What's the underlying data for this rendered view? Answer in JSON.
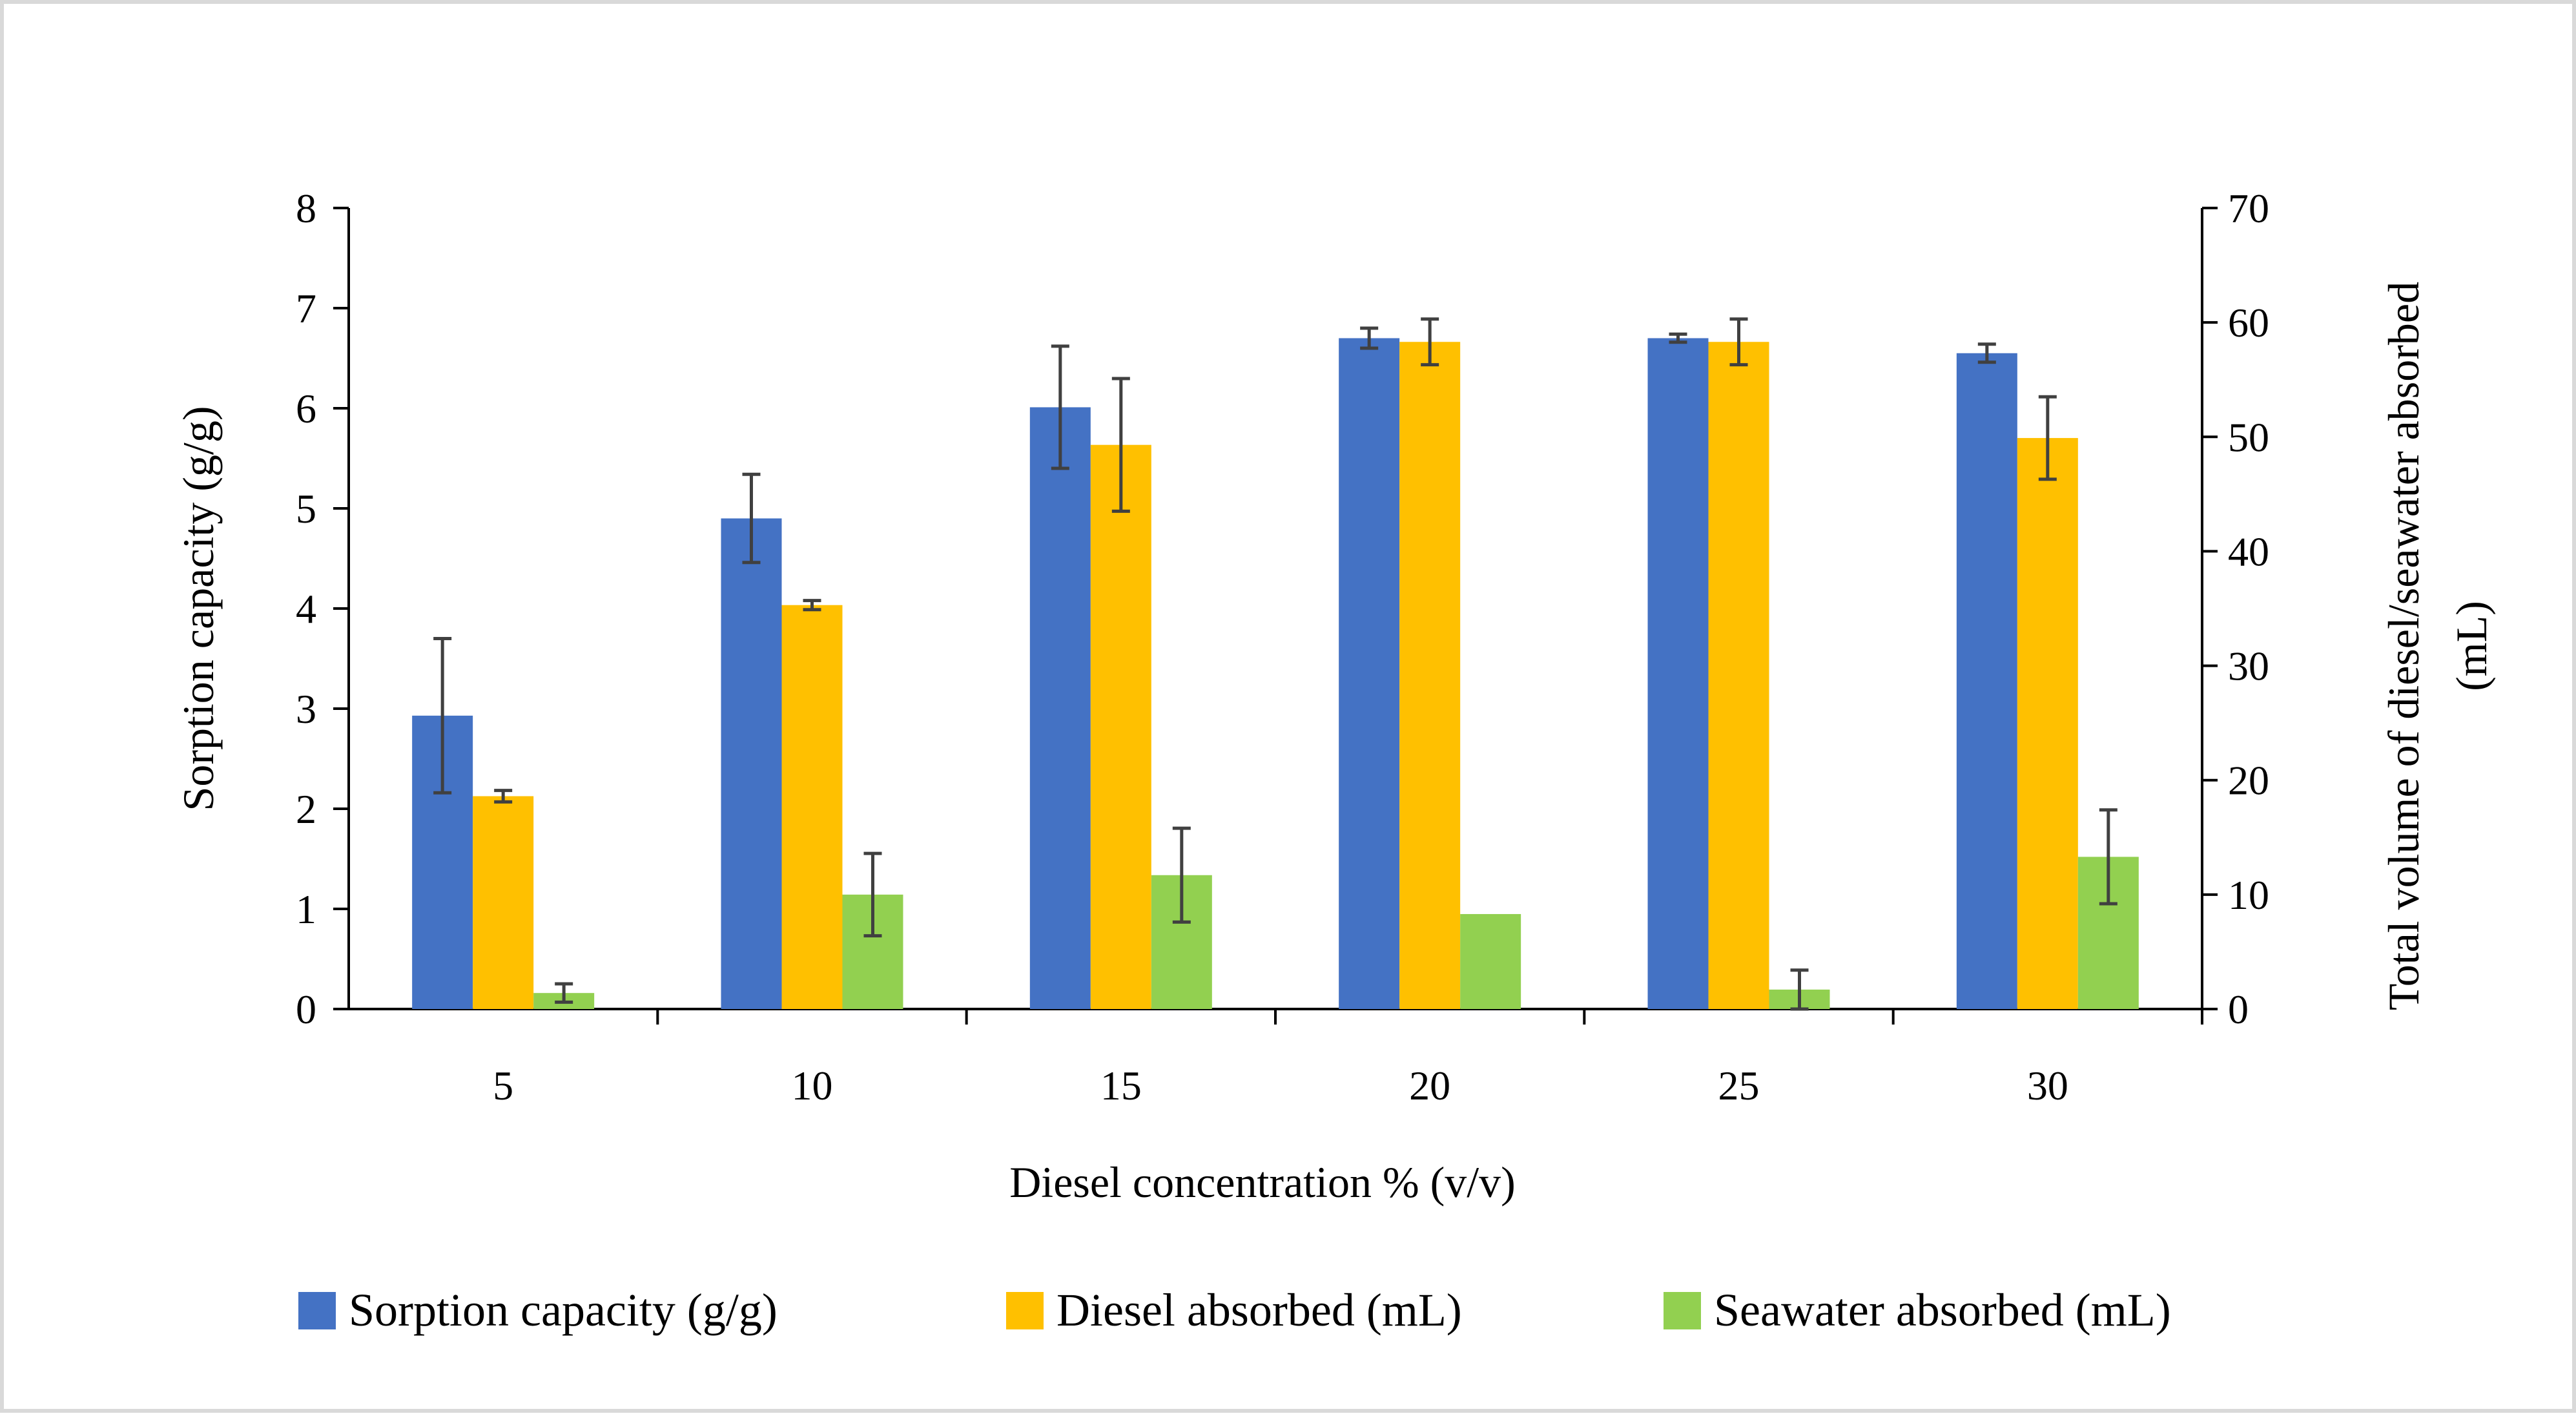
{
  "chart_data": {
    "type": "bar",
    "xlabel": "Diesel concentration % (v/v)",
    "ylabel_left": "Sorption capacity (g/g)",
    "ylabel_right_lines": [
      "Total volume of diesel/seawater absorbed",
      "(mL)"
    ],
    "categories": [
      "5",
      "10",
      "15",
      "20",
      "25",
      "30"
    ],
    "y_left": {
      "min": 0,
      "max": 8,
      "ticks": [
        "0",
        "1",
        "2",
        "3",
        "4",
        "5",
        "6",
        "7",
        "8"
      ]
    },
    "y_right": {
      "min": 0,
      "max": 70,
      "ticks": [
        "0",
        "10",
        "20",
        "30",
        "40",
        "50",
        "60",
        "70"
      ]
    },
    "series": [
      {
        "name": "Sorption capacity (g/g)",
        "axis": "left",
        "color": "#4472C4",
        "values": [
          2.93,
          4.9,
          6.01,
          6.7,
          6.7,
          6.55
        ],
        "error": [
          0.77,
          0.44,
          0.61,
          0.1,
          0.04,
          0.09
        ]
      },
      {
        "name": "Diesel absorbed (mL)",
        "axis": "right",
        "color": "#FFC000",
        "values": [
          18.6,
          35.3,
          49.3,
          58.3,
          58.3,
          49.9
        ],
        "error": [
          0.5,
          0.4,
          5.8,
          2.0,
          2.0,
          3.6
        ]
      },
      {
        "name": "Seawater absorbed (mL)",
        "axis": "right",
        "color": "#92D050",
        "values": [
          1.4,
          10.0,
          11.7,
          8.3,
          1.7,
          13.3
        ],
        "error": [
          0.8,
          3.6,
          4.1,
          0.0,
          1.7,
          4.1
        ]
      }
    ],
    "error_bar_color": "#404040",
    "legend_position": "bottom",
    "grid": false
  }
}
